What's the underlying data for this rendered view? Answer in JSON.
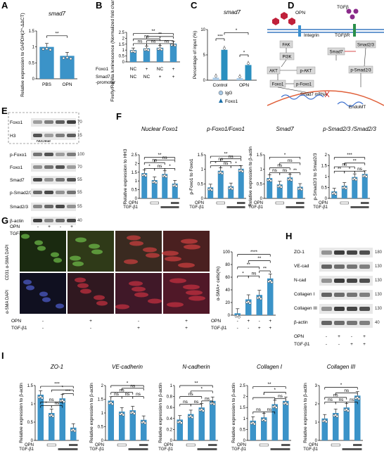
{
  "panels": {
    "A": {
      "label": "A",
      "title": "smad7",
      "ylabel": "Relative expression to GAPDH(2^-ΔΔCT)",
      "categories": [
        "PBS",
        "OPN"
      ],
      "sig": "**"
    },
    "B": {
      "label": "B",
      "ylabel": "Firefly/Renilla luminescence (Normalized fold change)",
      "row1_label": "Foxo1",
      "row2_label": "Smad7 -promoter",
      "row1": [
        "NC",
        "+",
        "NC",
        "+"
      ],
      "row2": [
        "NC",
        "NC",
        "+",
        "+"
      ],
      "sig": [
        "ns",
        "ns",
        "ns",
        "*",
        "**",
        "**",
        "ns"
      ]
    },
    "C": {
      "label": "C",
      "title": "smad7",
      "ylabel": "Percentage of input (%)",
      "categories": [
        "Control",
        "OPN"
      ],
      "legend": [
        "IgG",
        "Foxo1"
      ],
      "sig": [
        "***",
        "*",
        "*"
      ]
    },
    "D": {
      "label": "D",
      "nodes": [
        "OPN",
        "Integrin",
        "TGFβ",
        "TGFβR",
        "FAK",
        "PI3K",
        "AKT",
        "p-AKT",
        "Foxo1",
        "p-Foxo1",
        "Smad7",
        "Smad2/3",
        "p-Smad2/3",
        "Smad7 mRNA",
        "EndoMT"
      ]
    },
    "E": {
      "label": "E",
      "bands": [
        "Foxo1",
        "H3",
        "p-Foxo1",
        "Foxo1",
        "Smad7",
        "p-Smad2/3",
        "Smad2/3",
        "β-actin"
      ],
      "mw": [
        "70",
        "15",
        "100",
        "70",
        "55",
        "55",
        "55",
        "40"
      ],
      "nuclear": "Nuclear",
      "opn_label": "OPN",
      "tgf_label": "TGF-β1",
      "opn": [
        "-",
        "+",
        "-",
        "+"
      ],
      "tgf": [
        "-",
        "-",
        "+",
        "+"
      ]
    },
    "F": {
      "label": "F",
      "titles": [
        "Nuclear Foxo1",
        "p-Foxo1/Foxo1",
        "Smad7",
        "p-Smad2/3 /Smad2/3"
      ],
      "ylabels": [
        "Relative expression to HH3",
        "p-Foxo1 to Foxo1",
        "Relative expression to β-actin",
        "p-Smad2/3 to Smad2/3"
      ],
      "sig": [
        "*",
        "ns",
        "*",
        "ns",
        "**",
        "ns",
        "*",
        "ns",
        "*",
        "ns",
        "**",
        "ns",
        "ns",
        "ns",
        "**",
        "ns",
        "*",
        "ns",
        "*",
        "**",
        "ns",
        "***",
        "**"
      ]
    },
    "G": {
      "label": "G",
      "left_labels": [
        "CD31 α-SMA DAPI",
        "α-SMA DAPI"
      ],
      "opn_label": "OPN",
      "tgf_label": "TGF-β1",
      "opn": [
        "-",
        "+",
        "-",
        "+"
      ],
      "tgf": [
        "-",
        "-",
        "+",
        "+"
      ],
      "ylabel": "α-SMA+ cells(%)",
      "sig": [
        "****",
        "**",
        "**",
        "*",
        "ns",
        "**"
      ]
    },
    "H": {
      "label": "H",
      "bands": [
        "ZO-1",
        "VE-cad",
        "N-cad",
        "Collagen I",
        "Collagen III",
        "β-actin"
      ],
      "mw": [
        "180",
        "130",
        "130",
        "130",
        "130",
        "40"
      ],
      "opn_label": "OPN",
      "tgf_label": "TGF-β1",
      "opn": [
        "-",
        "+",
        "-",
        "+"
      ],
      "tgf": [
        "-",
        "-",
        "+",
        "+"
      ]
    },
    "I": {
      "label": "I",
      "titles": [
        "ZO-1",
        "VE-cadherin",
        "N-cadherin",
        "Collagen I",
        "Collagen III"
      ],
      "ylabel": "Relative expression to β-actin",
      "row_labels": [
        "OPN",
        "TGF-β1"
      ]
    }
  },
  "chart_data": [
    {
      "type": "bar",
      "title": "smad7",
      "categories": [
        "PBS",
        "OPN"
      ],
      "values": [
        1.0,
        0.72
      ],
      "ylabel": "Relative expression to GAPDH(2^-ΔΔCT)",
      "ylim": [
        0,
        1.5
      ]
    },
    {
      "type": "bar",
      "categories": [
        "1",
        "2",
        "3",
        "4"
      ],
      "values": [
        1.0,
        1.15,
        1.2,
        1.55
      ],
      "ylabel": "Firefly/Renilla luminescence (Normalized fold change)",
      "ylim": [
        0,
        2.5
      ]
    },
    {
      "type": "bar",
      "title": "smad7",
      "categories": [
        "Control",
        "OPN"
      ],
      "series": [
        {
          "name": "IgG",
          "values": [
            0.5,
            0.4
          ]
        },
        {
          "name": "Foxo1",
          "values": [
            6.0,
            3.0
          ]
        }
      ],
      "ylabel": "Percentage of input (%)",
      "ylim": [
        0,
        10
      ]
    },
    {
      "type": "bar",
      "title": "Nuclear Foxo1",
      "categories": [
        "1",
        "2",
        "3",
        "4"
      ],
      "values": [
        1.45,
        1.05,
        1.4,
        0.85
      ],
      "ylim": [
        0,
        2.5
      ]
    },
    {
      "type": "bar",
      "title": "p-Foxo1/Foxo1",
      "categories": [
        "1",
        "2",
        "3",
        "4"
      ],
      "values": [
        0.38,
        0.95,
        0.42,
        1.02
      ],
      "ylim": [
        0,
        1.5
      ]
    },
    {
      "type": "bar",
      "title": "Smad7",
      "categories": [
        "1",
        "2",
        "3",
        "4"
      ],
      "values": [
        0.7,
        0.48,
        0.72,
        0.4
      ],
      "ylim": [
        0,
        1.5
      ]
    },
    {
      "type": "bar",
      "title": "p-Smad2/3 /Smad2/3",
      "categories": [
        "1",
        "2",
        "3",
        "4"
      ],
      "values": [
        0.32,
        0.58,
        0.98,
        1.12
      ],
      "ylim": [
        0,
        2.0
      ]
    },
    {
      "type": "bar",
      "categories": [
        "1",
        "2",
        "3",
        "4"
      ],
      "values": [
        3,
        25,
        32,
        58
      ],
      "ylabel": "α-SMA+ cells(%)",
      "ylim": [
        0,
        100
      ]
    },
    {
      "type": "bar",
      "title": "ZO-1",
      "categories": [
        "1",
        "2",
        "3",
        "4"
      ],
      "values": [
        1.25,
        0.75,
        1.15,
        0.35
      ],
      "ylim": [
        0,
        1.5
      ]
    },
    {
      "type": "bar",
      "title": "VE-cadherin",
      "categories": [
        "1",
        "2",
        "3",
        "4"
      ],
      "values": [
        1.45,
        1.05,
        1.1,
        0.75
      ],
      "ylim": [
        0,
        2.0
      ]
    },
    {
      "type": "bar",
      "title": "N-cadherin",
      "categories": [
        "1",
        "2",
        "3",
        "4"
      ],
      "values": [
        0.38,
        0.48,
        0.6,
        0.72
      ],
      "ylim": [
        0,
        1.0
      ]
    },
    {
      "type": "bar",
      "title": "Collagen I",
      "categories": [
        "1",
        "2",
        "3",
        "4"
      ],
      "values": [
        0.9,
        1.05,
        1.65,
        1.8
      ],
      "ylim": [
        0,
        2.5
      ]
    },
    {
      "type": "bar",
      "title": "Collagen III",
      "categories": [
        "1",
        "2",
        "3",
        "4"
      ],
      "values": [
        1.2,
        1.5,
        1.8,
        2.45
      ],
      "ylim": [
        0,
        3.0
      ]
    }
  ]
}
